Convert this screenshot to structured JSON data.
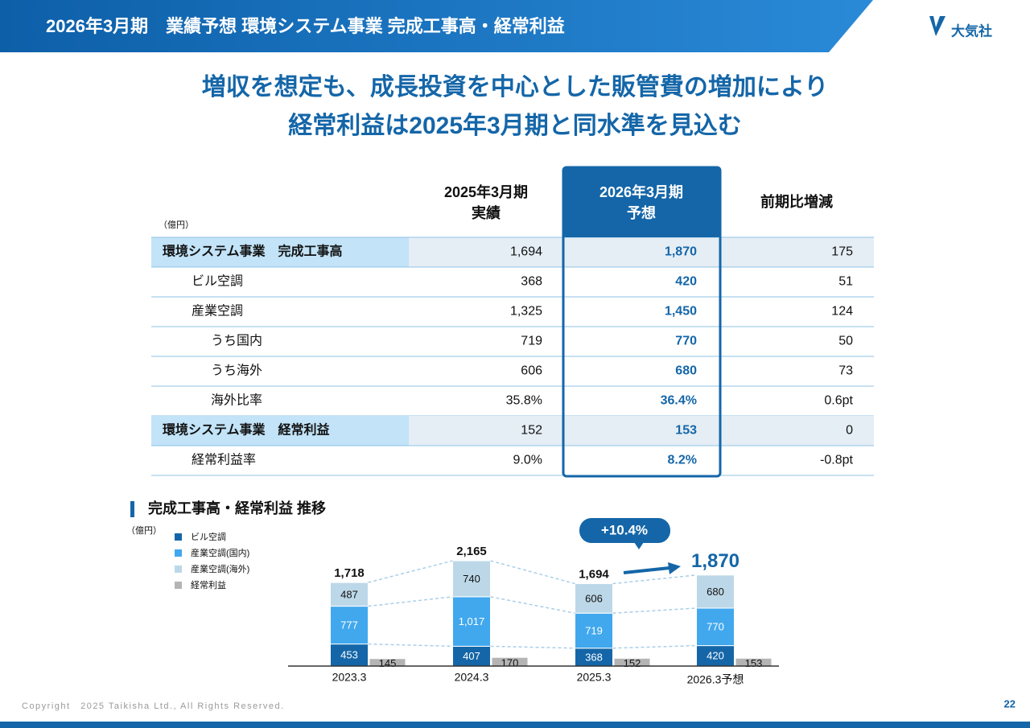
{
  "header": {
    "title": "2026年3月期　業績予想 環境システム事業 完成工事高・経常利益",
    "logo": "大気社"
  },
  "headline": [
    "増収を想定も、成長投資を中心とした販管費の増加により",
    "経常利益は2025年3月期と同水準を見込む"
  ],
  "table": {
    "unit": "（億円）",
    "columns": [
      [
        "2025年3月期",
        "実績"
      ],
      [
        "2026年3月期",
        "予想"
      ],
      [
        "前期比増減"
      ]
    ],
    "rows": [
      [
        "環境システム事業　完成工事高",
        "1,694",
        "1,870",
        "175"
      ],
      [
        "ビル空調",
        "368",
        "420",
        "51"
      ],
      [
        "産業空調",
        "1,325",
        "1,450",
        "124"
      ],
      [
        "うち国内",
        "719",
        "770",
        "50"
      ],
      [
        "うち海外",
        "606",
        "680",
        "73"
      ],
      [
        "海外比率",
        "35.8%",
        "36.4%",
        "0.6pt"
      ],
      [
        "環境システム事業　経常利益",
        "152",
        "153",
        "0"
      ],
      [
        "経常利益率",
        "9.0%",
        "8.2%",
        "-0.8pt"
      ]
    ]
  },
  "chart_data": {
    "type": "stacked_bar",
    "title": "完成工事高・経常利益 推移",
    "unit": "（億円）",
    "categories": [
      "2023.3",
      "2024.3",
      "2025.3",
      "2026.3予想"
    ],
    "series": [
      {
        "name": "ビル空調",
        "color": "#1466a8",
        "values": [
          453,
          407,
          368,
          420
        ]
      },
      {
        "name": "産業空調(国内)",
        "color": "#41a8ee",
        "values": [
          777,
          1017,
          719,
          770
        ],
        "value_labels": [
          "777",
          "1,017",
          "719",
          "770"
        ]
      },
      {
        "name": "産業空調(海外)",
        "color": "#bcd8e8",
        "values": [
          487,
          740,
          606,
          680
        ]
      },
      {
        "name": "経常利益",
        "color": "#b4b4b4",
        "values": [
          145,
          170,
          152,
          153
        ],
        "separate": true
      }
    ],
    "totals": {
      "values": [
        1718,
        2165,
        1694,
        1870
      ],
      "value_labels": [
        "1,718",
        "2,165",
        "1,694",
        "1,870"
      ]
    },
    "annotation": "+10.4%"
  },
  "footer": {
    "copyright": "Copyright　2025 Taikisha Ltd., All Rights Reserved.",
    "page": "22"
  }
}
